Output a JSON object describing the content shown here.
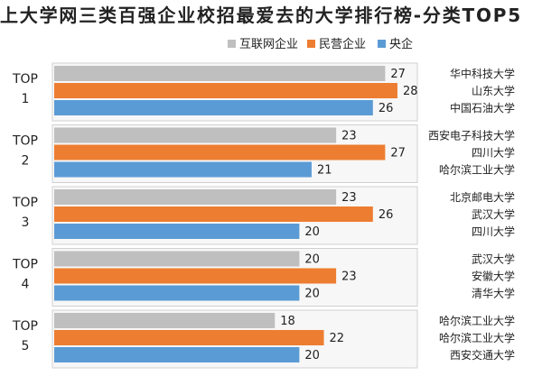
{
  "chart_data": {
    "type": "bar",
    "orientation": "horizontal",
    "title": "上大学网三类百强企业校招最爱去的大学排行榜-分类TOP5",
    "legend_position": "top",
    "grid": false,
    "xlim": [
      0,
      30
    ],
    "categories": [
      "TOP 1",
      "TOP 2",
      "TOP 3",
      "TOP 4",
      "TOP 5"
    ],
    "series": [
      {
        "name": "互联网企业",
        "color": "#bfbfbf",
        "values": [
          27,
          23,
          23,
          20,
          18
        ],
        "universities": [
          "华中科技大学",
          "西安电子科技大学",
          "北京邮电大学",
          "武汉大学",
          "哈尔滨工业大学"
        ]
      },
      {
        "name": "民营企业",
        "color": "#ed7d31",
        "values": [
          28,
          27,
          26,
          23,
          22
        ],
        "universities": [
          "山东大学",
          "四川大学",
          "武汉大学",
          "安徽大学",
          "哈尔滨工业大学"
        ]
      },
      {
        "name": "央企",
        "color": "#5b9bd5",
        "values": [
          26,
          21,
          20,
          20,
          20
        ],
        "universities": [
          "中国石油大学",
          "哈尔滨工业大学",
          "四川大学",
          "清华大学",
          "西安交通大学"
        ]
      }
    ]
  }
}
